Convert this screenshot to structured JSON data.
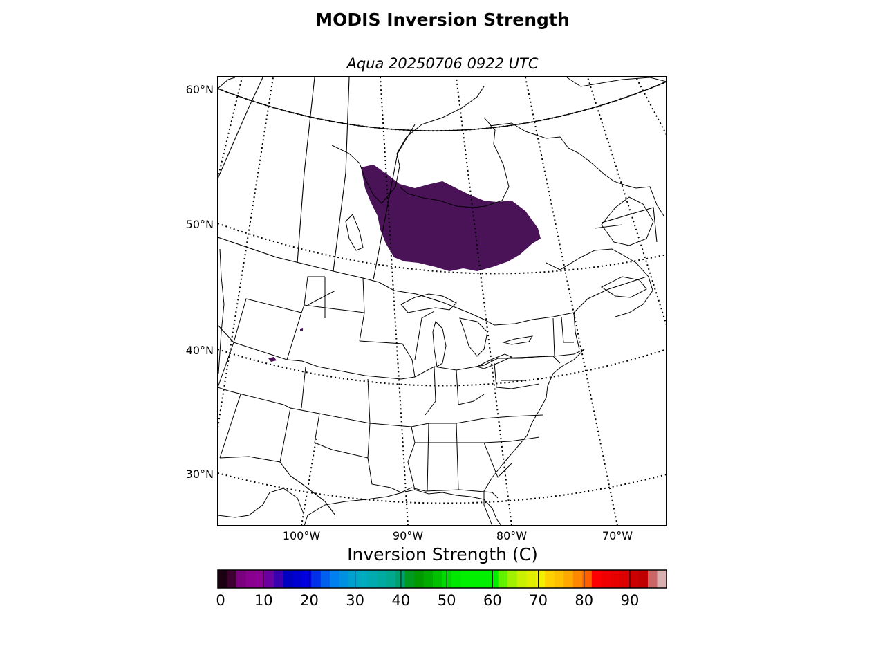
{
  "title": "MODIS Inversion Strength",
  "subtitle": "Aqua 20250706 0922 UTC",
  "map": {
    "lat_labels": [
      "60°N",
      "50°N",
      "40°N",
      "30°N"
    ],
    "lon_labels": [
      "100°W",
      "90°W",
      "80°W",
      "70°W"
    ],
    "data_color": "#4a1358"
  },
  "colorbar": {
    "label": "Inversion Strength (C)",
    "ticks": [
      "0",
      "10",
      "20",
      "30",
      "40",
      "50",
      "60",
      "70",
      "80",
      "90"
    ],
    "range": [
      0,
      98
    ],
    "colors": [
      "#1a0010",
      "#3d0030",
      "#7a0080",
      "#8a0090",
      "#8c0096",
      "#6a00a0",
      "#3a00b0",
      "#0000c0",
      "#0000d0",
      "#0000e0",
      "#0030e8",
      "#0060ee",
      "#0080ee",
      "#0090e0",
      "#00a0d0",
      "#00aac0",
      "#00aab0",
      "#00aaa0",
      "#00a890",
      "#00a070",
      "#009a20",
      "#009a00",
      "#00aa00",
      "#00c000",
      "#00d800",
      "#00e800",
      "#00f000",
      "#00f000",
      "#00f000",
      "#00f000",
      "#60f000",
      "#a0f000",
      "#c8f000",
      "#e0ee00",
      "#f0f000",
      "#ffd000",
      "#ffc000",
      "#ffa800",
      "#ff8800",
      "#ff6000",
      "#ff0000",
      "#f00000",
      "#e80000",
      "#dd0000",
      "#cc0000",
      "#c00000",
      "#cc6666",
      "#d8b0b0"
    ]
  }
}
